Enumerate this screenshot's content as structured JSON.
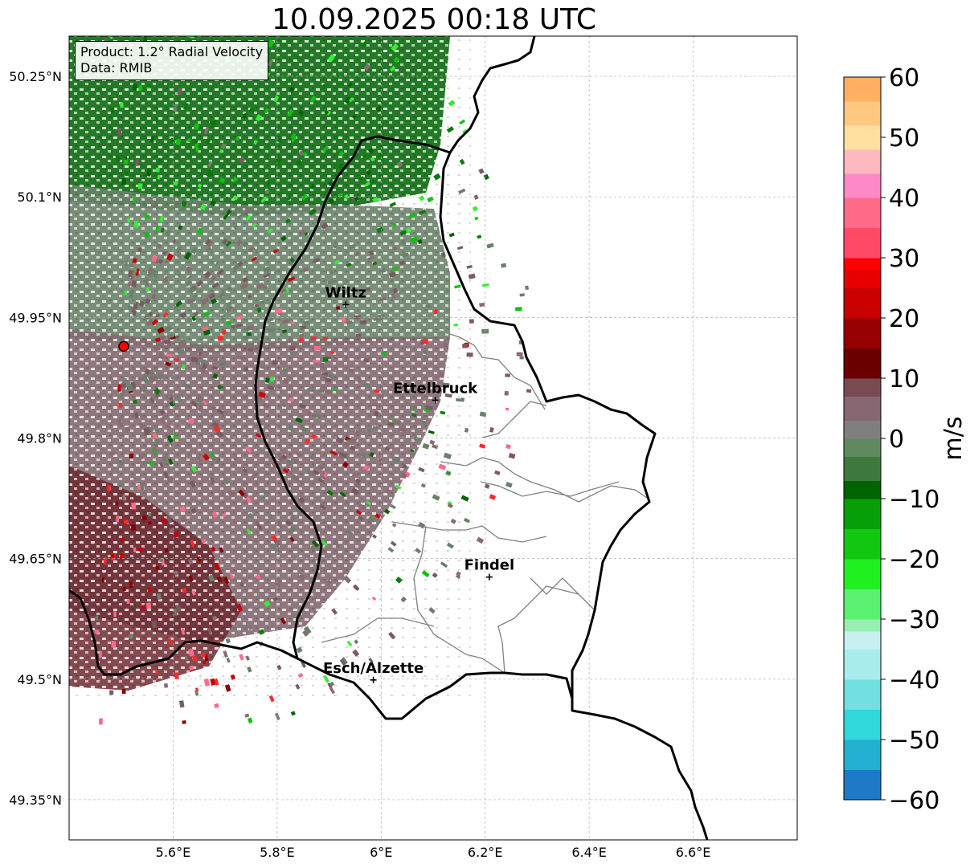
{
  "title": "10.09.2025 00:18 UTC",
  "info": {
    "product": "Product: 1.2° Radial Velocity",
    "data_source": "Data: RMIB"
  },
  "map": {
    "lon_range": [
      5.4,
      6.8
    ],
    "lat_range": [
      49.3,
      50.3
    ],
    "radar_site": {
      "lon": 5.505,
      "lat": 49.914
    },
    "lat_ticks": [
      {
        "value": 50.25,
        "label": "50.25°N"
      },
      {
        "value": 50.1,
        "label": "50.1°N"
      },
      {
        "value": 49.95,
        "label": "49.95°N"
      },
      {
        "value": 49.8,
        "label": "49.8°N"
      },
      {
        "value": 49.65,
        "label": "49.65°N"
      },
      {
        "value": 49.5,
        "label": "49.5°N"
      },
      {
        "value": 49.35,
        "label": "49.35°N"
      }
    ],
    "lon_ticks": [
      {
        "value": 5.6,
        "label": "5.6°E"
      },
      {
        "value": 5.8,
        "label": "5.8°E"
      },
      {
        "value": 6.0,
        "label": "6°E"
      },
      {
        "value": 6.2,
        "label": "6.2°E"
      },
      {
        "value": 6.4,
        "label": "6.4°E"
      },
      {
        "value": 6.6,
        "label": "6.6°E"
      }
    ],
    "cities": [
      {
        "name": "Wiltz",
        "lon": 5.932,
        "lat": 49.966
      },
      {
        "name": "Ettelbruck",
        "lon": 6.104,
        "lat": 49.847
      },
      {
        "name": "Findel",
        "lon": 6.208,
        "lat": 49.627
      },
      {
        "name": "Esch/Alzette",
        "lon": 5.985,
        "lat": 49.499
      }
    ]
  },
  "colorbar": {
    "label": "m/s",
    "min": -60,
    "max": 60,
    "ticks": [
      {
        "value": 60,
        "label": "60"
      },
      {
        "value": 50,
        "label": "50"
      },
      {
        "value": 40,
        "label": "40"
      },
      {
        "value": 30,
        "label": "30"
      },
      {
        "value": 20,
        "label": "20"
      },
      {
        "value": 10,
        "label": "10"
      },
      {
        "value": 0,
        "label": "0"
      },
      {
        "value": -10,
        "label": "−10"
      },
      {
        "value": -20,
        "label": "−20"
      },
      {
        "value": -30,
        "label": "−30"
      },
      {
        "value": -40,
        "label": "−40"
      },
      {
        "value": -50,
        "label": "−50"
      },
      {
        "value": -60,
        "label": "−60"
      }
    ],
    "color_stops": [
      {
        "value": -60,
        "color": "#1f78c8"
      },
      {
        "value": -55,
        "color": "#22b0d0"
      },
      {
        "value": -50,
        "color": "#30d8dc"
      },
      {
        "value": -45,
        "color": "#70e0e0"
      },
      {
        "value": -40,
        "color": "#a8ecec"
      },
      {
        "value": -35,
        "color": "#c8f0f0"
      },
      {
        "value": -32,
        "color": "#98f0b0"
      },
      {
        "value": -30,
        "color": "#5af070"
      },
      {
        "value": -25,
        "color": "#20f020"
      },
      {
        "value": -20,
        "color": "#10c810"
      },
      {
        "value": -15,
        "color": "#08a008"
      },
      {
        "value": -10,
        "color": "#006400"
      },
      {
        "value": -7,
        "color": "#3e7a3e"
      },
      {
        "value": -3,
        "color": "#5f8a5f"
      },
      {
        "value": 0,
        "color": "#7f7f7f"
      },
      {
        "value": 3,
        "color": "#866772"
      },
      {
        "value": 7,
        "color": "#7a4a52"
      },
      {
        "value": 10,
        "color": "#6a0000"
      },
      {
        "value": 15,
        "color": "#960000"
      },
      {
        "value": 20,
        "color": "#c80000"
      },
      {
        "value": 25,
        "color": "#e80000"
      },
      {
        "value": 28,
        "color": "#ff0000"
      },
      {
        "value": 30,
        "color": "#ff4a66"
      },
      {
        "value": 35,
        "color": "#ff6a88"
      },
      {
        "value": 40,
        "color": "#ff88c8"
      },
      {
        "value": 44,
        "color": "#ffb8c0"
      },
      {
        "value": 48,
        "color": "#ffe0a0"
      },
      {
        "value": 52,
        "color": "#ffc880"
      },
      {
        "value": 56,
        "color": "#ffb060"
      },
      {
        "value": 60,
        "color": "#ff9850"
      }
    ]
  }
}
